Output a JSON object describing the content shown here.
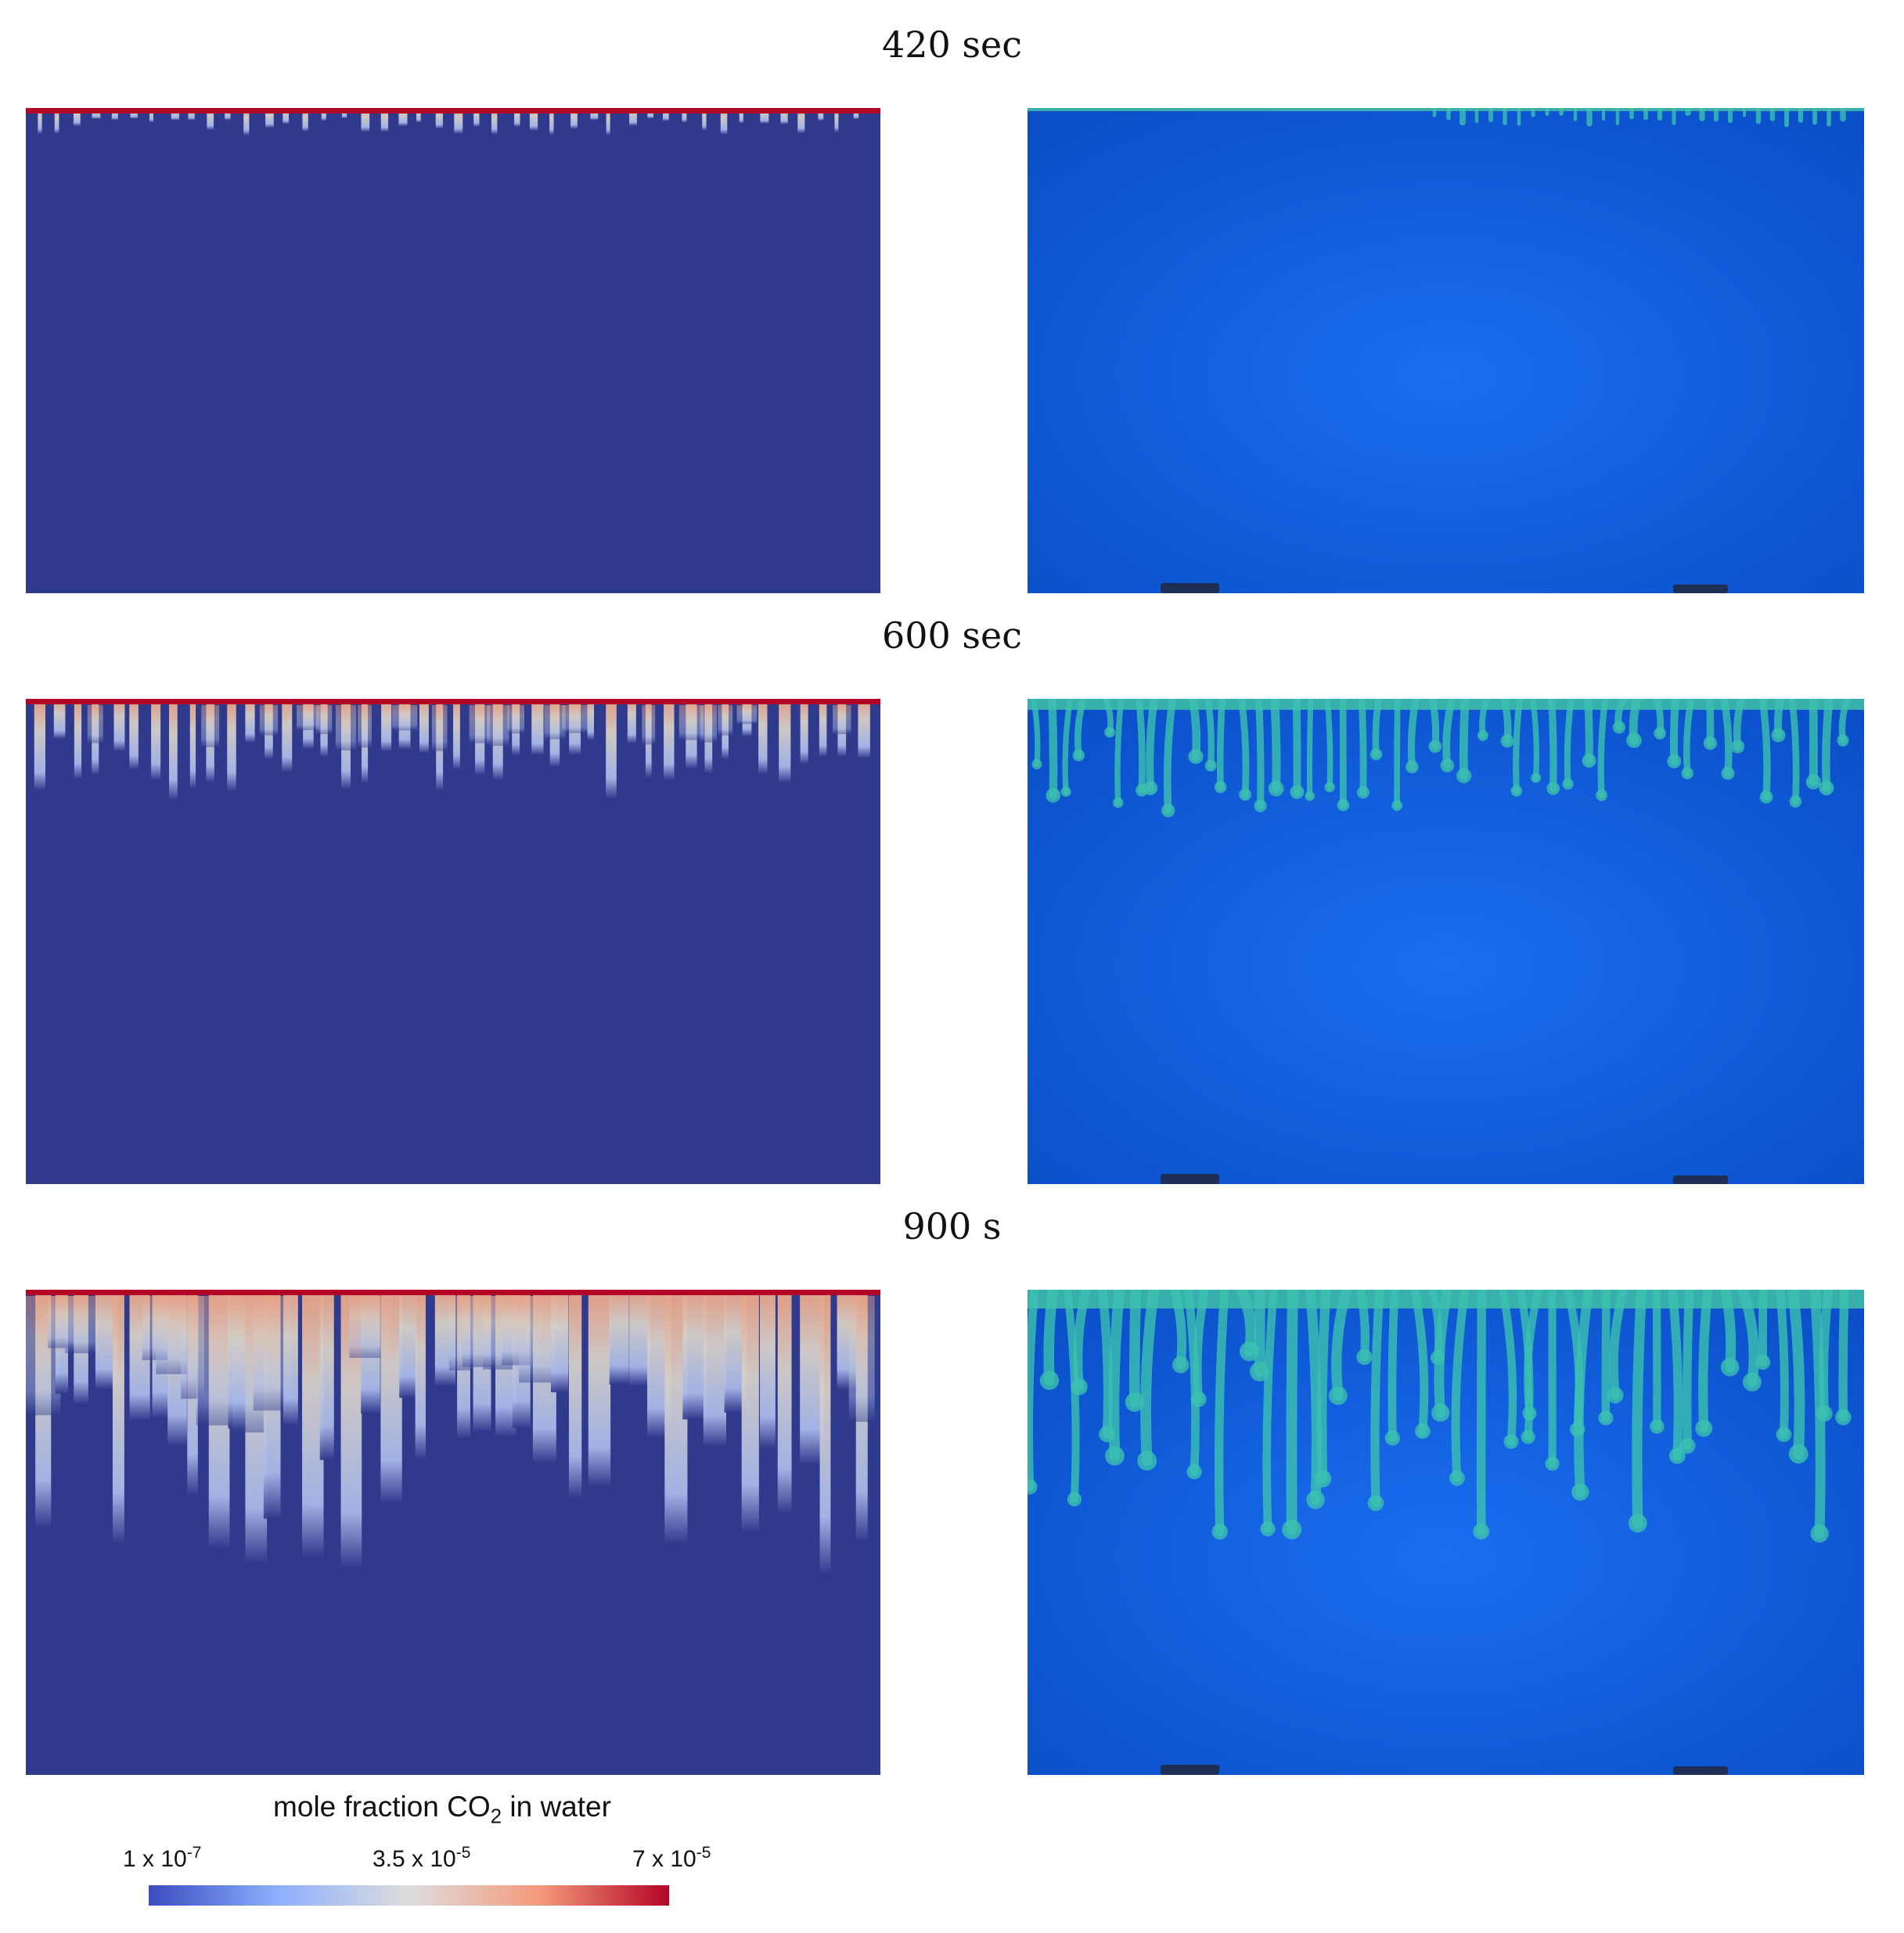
{
  "rows": [
    {
      "time_label": "420 sec"
    },
    {
      "time_label": "600 sec"
    },
    {
      "time_label": "900 s"
    }
  ],
  "legend": {
    "title_prefix": "mole fraction CO",
    "title_subscript": "2",
    "title_suffix": " in water",
    "ticks": [
      {
        "mantissa": "1 x 10",
        "exponent": "-7"
      },
      {
        "mantissa": "3.5 x 10",
        "exponent": "-5"
      },
      {
        "mantissa": "7 x 10",
        "exponent": "-5"
      }
    ],
    "colormap": [
      "#3b4cc0",
      "#8db0fe",
      "#dddddd",
      "#f49a7b",
      "#b40426"
    ]
  }
}
